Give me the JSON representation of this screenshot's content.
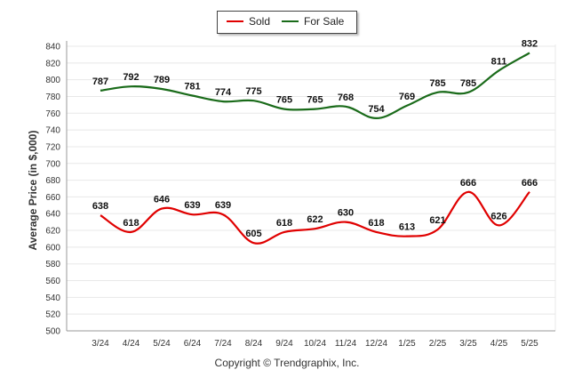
{
  "legend": {
    "sold": "Sold",
    "for_sale": "For Sale"
  },
  "footer": {
    "copyright": "Copyright © Trendgraphix, Inc."
  },
  "colors": {
    "sold": "#e00000",
    "for_sale": "#1a6b1a",
    "grid": "#e8e8e8",
    "axis": "#999999"
  },
  "chart_data": {
    "type": "line",
    "title": "",
    "xlabel": "",
    "ylabel": "Average Price (in $,000)",
    "ylim": [
      500,
      840
    ],
    "ytick_step": 20,
    "grid": true,
    "legend_position": "top-center",
    "categories": [
      "3/24",
      "4/24",
      "5/24",
      "6/24",
      "7/24",
      "8/24",
      "9/24",
      "10/24",
      "11/24",
      "12/24",
      "1/25",
      "2/25",
      "3/25",
      "4/25",
      "5/25"
    ],
    "series": [
      {
        "name": "Sold",
        "color": "#e00000",
        "values": [
          638,
          618,
          646,
          639,
          639,
          605,
          618,
          622,
          630,
          618,
          613,
          621,
          666,
          626,
          666
        ]
      },
      {
        "name": "For Sale",
        "color": "#1a6b1a",
        "values": [
          787,
          792,
          789,
          781,
          774,
          775,
          765,
          765,
          768,
          754,
          769,
          785,
          785,
          811,
          832
        ]
      }
    ]
  }
}
